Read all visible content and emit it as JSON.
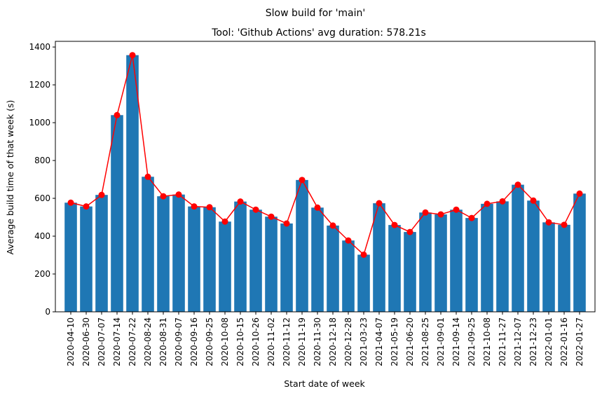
{
  "figure": {
    "suptitle": "Slow build for 'main'",
    "title": "Tool: 'Github Actions' avg duration: 578.21s"
  },
  "chart_data": {
    "type": "bar",
    "title": "Tool: 'Github Actions' avg duration: 578.21s",
    "suptitle": "Slow build for 'main'",
    "xlabel": "Start date of week",
    "ylabel": "Average build time of that week (s)",
    "ylim": [
      0,
      1430
    ],
    "yticks": [
      0,
      200,
      400,
      600,
      800,
      1000,
      1200,
      1400
    ],
    "grid": false,
    "legend": "none",
    "categories": [
      "2020-04-10",
      "2020-06-30",
      "2020-07-07",
      "2020-07-14",
      "2020-07-22",
      "2020-08-24",
      "2020-08-31",
      "2020-09-07",
      "2020-09-16",
      "2020-09-25",
      "2020-10-08",
      "2020-10-15",
      "2020-10-26",
      "2020-11-02",
      "2020-11-12",
      "2020-11-19",
      "2020-11-30",
      "2020-12-18",
      "2020-12-28",
      "2021-03-23",
      "2021-04-07",
      "2021-05-19",
      "2021-06-20",
      "2021-08-25",
      "2021-09-01",
      "2021-09-14",
      "2021-09-25",
      "2021-10-08",
      "2021-11-27",
      "2021-12-07",
      "2021-12-23",
      "2022-01-01",
      "2022-01-16",
      "2022-01-27"
    ],
    "series": [
      {
        "type": "bar",
        "color": "#1f77b4",
        "values": [
          577,
          557,
          618,
          1040,
          1357,
          714,
          611,
          620,
          557,
          553,
          477,
          583,
          540,
          503,
          467,
          697,
          551,
          456,
          377,
          302,
          574,
          459,
          422,
          525,
          515,
          540,
          496,
          571,
          584,
          672,
          588,
          473,
          460,
          625
        ]
      },
      {
        "type": "line",
        "color": "#ff0000",
        "marker": "circle",
        "values": [
          577,
          557,
          618,
          1040,
          1357,
          714,
          611,
          620,
          557,
          553,
          477,
          583,
          540,
          503,
          467,
          697,
          551,
          456,
          377,
          302,
          574,
          459,
          422,
          525,
          515,
          540,
          496,
          571,
          584,
          672,
          588,
          473,
          460,
          625
        ]
      }
    ]
  }
}
